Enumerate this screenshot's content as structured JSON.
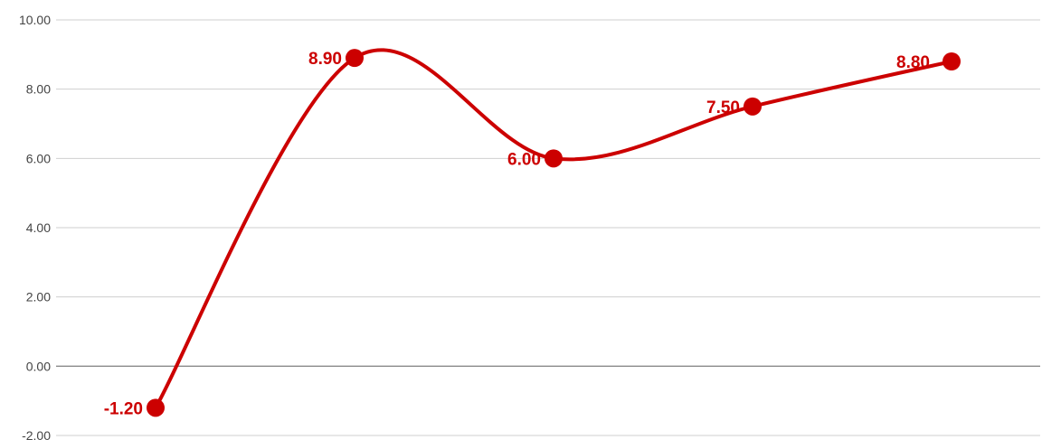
{
  "chart_data": {
    "type": "line",
    "smooth": true,
    "title": "",
    "xlabel": "",
    "ylabel": "",
    "ylim": [
      -2,
      10
    ],
    "y_ticks": [
      10,
      8,
      6,
      4,
      2,
      0,
      -2
    ],
    "y_tick_labels": [
      "10.00",
      "8.00",
      "6.00",
      "4.00",
      "2.00",
      "0.00",
      "-2.00"
    ],
    "grid": true,
    "legend": "none",
    "series": [
      {
        "color": "#cc0000",
        "values": [
          -1.2,
          8.9,
          6.0,
          7.5,
          8.8
        ],
        "labels": [
          "-1.20",
          "8.90",
          "6.00",
          "7.50",
          "8.80"
        ]
      }
    ]
  }
}
